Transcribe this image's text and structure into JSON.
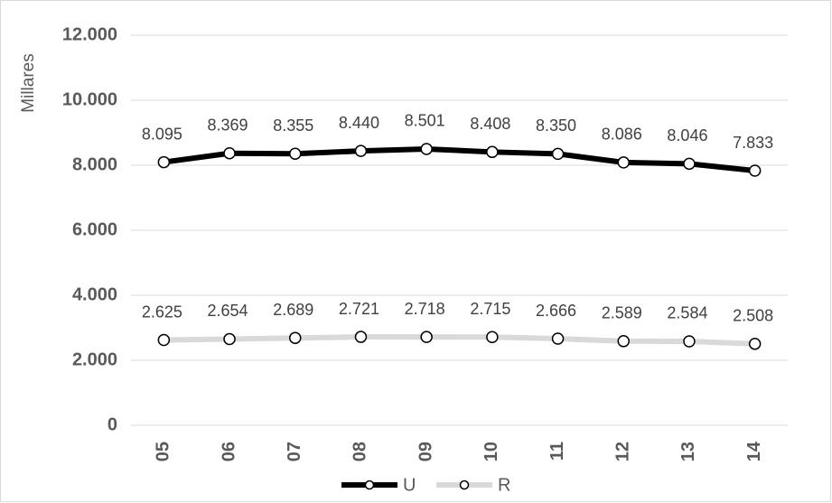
{
  "chart_data": {
    "type": "line",
    "y_label": "Millares",
    "categories": [
      "05",
      "06",
      "07",
      "08",
      "09",
      "10",
      "11",
      "12",
      "13",
      "14"
    ],
    "series": [
      {
        "name": "U",
        "color": "#000000",
        "values": [
          8095,
          8369,
          8355,
          8440,
          8501,
          8408,
          8350,
          8086,
          8046,
          7833
        ],
        "value_labels": [
          "8.095",
          "8.369",
          "8.355",
          "8.440",
          "8.501",
          "8.408",
          "8.350",
          "8.086",
          "8.046",
          "7.833"
        ]
      },
      {
        "name": "R",
        "color": "#d9d9d9",
        "values": [
          2625,
          2654,
          2689,
          2721,
          2718,
          2715,
          2666,
          2589,
          2584,
          2508
        ],
        "value_labels": [
          "2.625",
          "2.654",
          "2.689",
          "2.721",
          "2.718",
          "2.715",
          "2.666",
          "2.589",
          "2.584",
          "2.508"
        ]
      }
    ],
    "ylim": [
      0,
      12000
    ],
    "yticks": [
      0,
      {
        "value": 2000,
        "label": "2.000"
      },
      {
        "value": 4000,
        "label": "4.000"
      },
      {
        "value": 6000,
        "label": "6.000"
      },
      {
        "value": 8000,
        "label": "8.000"
      },
      {
        "value": 10000,
        "label": "10.000"
      },
      {
        "value": 12000,
        "label": "12.000"
      }
    ],
    "grid": true,
    "legend": "bottom"
  }
}
